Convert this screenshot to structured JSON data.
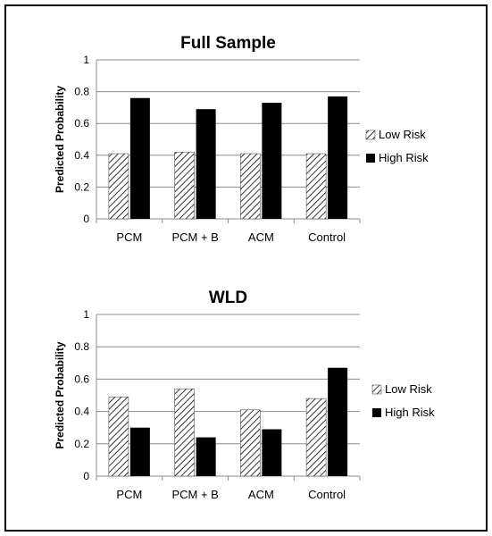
{
  "chart_data": [
    {
      "type": "bar",
      "title": "Full Sample",
      "xlabel": "",
      "ylabel": "Predicted Probability",
      "ylim": [
        0,
        1
      ],
      "yticks": [
        "0",
        "0.2",
        "0.4",
        "0.6",
        "0.8",
        "1"
      ],
      "categories": [
        "PCM",
        "PCM + B",
        "ACM",
        "Control"
      ],
      "series": [
        {
          "name": "Low Risk",
          "values": [
            0.41,
            0.42,
            0.41,
            0.41
          ],
          "style": "hatched"
        },
        {
          "name": "High Risk",
          "values": [
            0.76,
            0.69,
            0.73,
            0.77
          ],
          "style": "solid",
          "color": "#000000"
        }
      ],
      "legend_position": "right",
      "grid": true
    },
    {
      "type": "bar",
      "title": "WLD",
      "xlabel": "",
      "ylabel": "Predicted Probability",
      "ylim": [
        0,
        1
      ],
      "yticks": [
        "0",
        "0.2",
        "0.4",
        "0.6",
        "0.8",
        "1"
      ],
      "categories": [
        "PCM",
        "PCM + B",
        "ACM",
        "Control"
      ],
      "series": [
        {
          "name": "Low Risk",
          "values": [
            0.49,
            0.54,
            0.41,
            0.48
          ],
          "style": "hatched"
        },
        {
          "name": "High Risk",
          "values": [
            0.3,
            0.24,
            0.29,
            0.67
          ],
          "style": "solid",
          "color": "#000000"
        }
      ],
      "legend_position": "right",
      "grid": true
    }
  ]
}
